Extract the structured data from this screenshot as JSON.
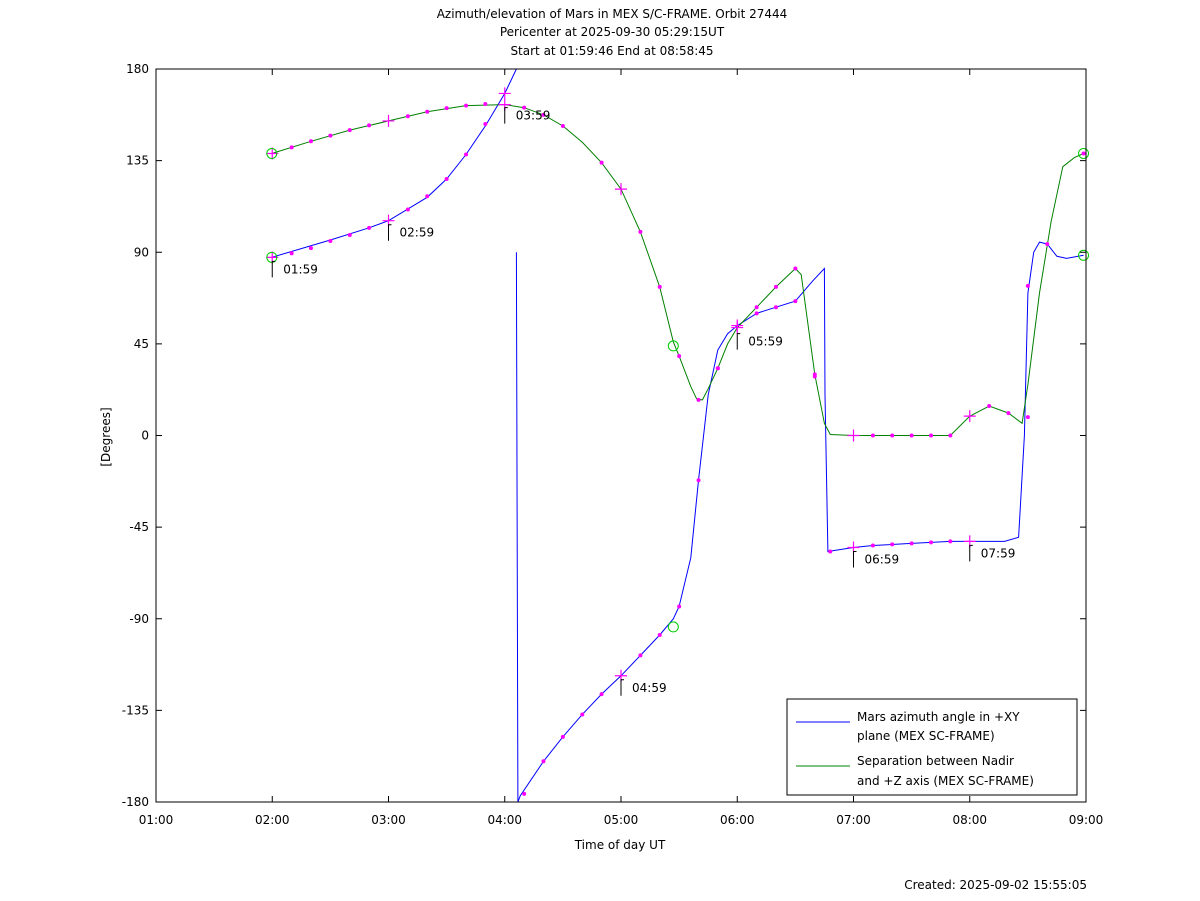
{
  "chart_data": {
    "type": "line",
    "title": "Azimuth/elevation of Mars in MEX S/C-FRAME.  Orbit 27444",
    "subtitle_1": "Pericenter at 2025-09-30 05:29:15UT",
    "subtitle_2": "Start at 01:59:46 End at 08:58:45",
    "xlabel": "Time of day UT",
    "ylabel": "[Degrees]",
    "xlim": [
      1.0,
      9.0
    ],
    "ylim": [
      -180,
      180
    ],
    "x_ticks": [
      {
        "v": 1,
        "label": "01:00"
      },
      {
        "v": 2,
        "label": "02:00"
      },
      {
        "v": 3,
        "label": "03:00"
      },
      {
        "v": 4,
        "label": "04:00"
      },
      {
        "v": 5,
        "label": "05:00"
      },
      {
        "v": 6,
        "label": "06:00"
      },
      {
        "v": 7,
        "label": "07:00"
      },
      {
        "v": 8,
        "label": "08:00"
      },
      {
        "v": 9,
        "label": "09:00"
      }
    ],
    "y_ticks": [
      {
        "v": 180,
        "label": "180"
      },
      {
        "v": 135,
        "label": "135"
      },
      {
        "v": 90,
        "label": "90"
      },
      {
        "v": 45,
        "label": "45"
      },
      {
        "v": 0,
        "label": "0"
      },
      {
        "v": -45,
        "label": "-45"
      },
      {
        "v": -90,
        "label": "-90"
      },
      {
        "v": -135,
        "label": "-135"
      },
      {
        "v": -180,
        "label": "-180"
      }
    ],
    "grid": false,
    "legend_position": "bottom-right",
    "series": [
      {
        "name_line1": "Mars azimuth angle in +XY",
        "name_line2": "plane (MEX SC-FRAME)",
        "color": "#0000ff",
        "points": [
          [
            1.996,
            87.5
          ],
          [
            2.5,
            96
          ],
          [
            2.833,
            102
          ],
          [
            3.0,
            105.5
          ],
          [
            3.333,
            117
          ],
          [
            3.5,
            126
          ],
          [
            3.667,
            138
          ],
          [
            3.833,
            152
          ],
          [
            4.0,
            168
          ],
          [
            4.1,
            180
          ],
          [
            4.1,
            null
          ],
          [
            4.1,
            90
          ],
          [
            4.113,
            -180
          ],
          [
            4.133,
            -177
          ],
          [
            4.333,
            -160
          ],
          [
            4.5,
            -148
          ],
          [
            4.667,
            -137
          ],
          [
            4.833,
            -127
          ],
          [
            5.0,
            -118
          ],
          [
            5.167,
            -108
          ],
          [
            5.333,
            -98
          ],
          [
            5.45,
            -90
          ],
          [
            5.5,
            -84
          ],
          [
            5.6,
            -60
          ],
          [
            5.667,
            -22
          ],
          [
            5.75,
            20
          ],
          [
            5.833,
            42
          ],
          [
            5.917,
            50
          ],
          [
            6.0,
            54
          ],
          [
            6.167,
            60
          ],
          [
            6.333,
            63
          ],
          [
            6.5,
            66
          ],
          [
            6.65,
            76
          ],
          [
            6.75,
            82
          ],
          [
            6.755,
            20
          ],
          [
            6.78,
            -57
          ],
          [
            6.833,
            -56.5
          ],
          [
            7.0,
            -55
          ],
          [
            7.167,
            -54
          ],
          [
            7.5,
            -53
          ],
          [
            7.833,
            -52
          ],
          [
            8.0,
            -52
          ],
          [
            8.3,
            -52
          ],
          [
            8.42,
            -50
          ],
          [
            8.47,
            0
          ],
          [
            8.5,
            70
          ],
          [
            8.55,
            90
          ],
          [
            8.6,
            95
          ],
          [
            8.667,
            94
          ],
          [
            8.75,
            88
          ],
          [
            8.833,
            87
          ],
          [
            8.979,
            88.5
          ]
        ]
      },
      {
        "name_line1": "Separation between Nadir",
        "name_line2": "and +Z axis (MEX SC-FRAME)",
        "color": "#008000",
        "points": [
          [
            1.996,
            138.5
          ],
          [
            2.333,
            144.5
          ],
          [
            2.667,
            150
          ],
          [
            3.0,
            154.5
          ],
          [
            3.333,
            159
          ],
          [
            3.667,
            162
          ],
          [
            4.0,
            162.5
          ],
          [
            4.167,
            161
          ],
          [
            4.333,
            157.5
          ],
          [
            4.5,
            152
          ],
          [
            4.667,
            144
          ],
          [
            4.833,
            134
          ],
          [
            5.0,
            121
          ],
          [
            5.167,
            100
          ],
          [
            5.333,
            73
          ],
          [
            5.45,
            46
          ],
          [
            5.5,
            39
          ],
          [
            5.6,
            24
          ],
          [
            5.65,
            18
          ],
          [
            5.7,
            17.5
          ],
          [
            5.75,
            23
          ],
          [
            5.833,
            33
          ],
          [
            5.917,
            45
          ],
          [
            6.0,
            53
          ],
          [
            6.167,
            63
          ],
          [
            6.333,
            73
          ],
          [
            6.5,
            82
          ],
          [
            6.55,
            79
          ],
          [
            6.667,
            30
          ],
          [
            6.75,
            6
          ],
          [
            6.8,
            0.5
          ],
          [
            7.0,
            0
          ],
          [
            7.5,
            0
          ],
          [
            7.833,
            0
          ],
          [
            8.0,
            9.5
          ],
          [
            8.167,
            14.5
          ],
          [
            8.333,
            11
          ],
          [
            8.45,
            6
          ],
          [
            8.5,
            25
          ],
          [
            8.6,
            70
          ],
          [
            8.7,
            105
          ],
          [
            8.8,
            132
          ],
          [
            8.9,
            136.5
          ],
          [
            8.979,
            138.5
          ]
        ]
      }
    ],
    "markers_dots": [
      [
        2.167,
        141.5
      ],
      [
        2.333,
        144.5
      ],
      [
        2.5,
        147.3
      ],
      [
        2.667,
        150
      ],
      [
        2.833,
        152.3
      ],
      [
        3.167,
        156.8
      ],
      [
        3.333,
        159
      ],
      [
        3.5,
        160.8
      ],
      [
        3.667,
        162
      ],
      [
        3.833,
        162.8
      ],
      [
        4.167,
        161
      ],
      [
        4.333,
        157.5
      ],
      [
        4.5,
        152
      ],
      [
        4.833,
        134
      ],
      [
        5.167,
        100
      ],
      [
        5.333,
        73
      ],
      [
        5.5,
        39
      ],
      [
        5.667,
        17.5
      ],
      [
        5.833,
        33
      ],
      [
        6.167,
        63
      ],
      [
        6.333,
        73
      ],
      [
        6.5,
        82
      ],
      [
        6.667,
        30
      ],
      [
        7.167,
        0
      ],
      [
        7.333,
        0
      ],
      [
        7.5,
        0
      ],
      [
        7.667,
        0
      ],
      [
        7.833,
        0
      ],
      [
        8.167,
        14.5
      ],
      [
        8.333,
        11
      ],
      [
        8.5,
        9
      ],
      [
        8.979,
        138.5
      ],
      [
        2.167,
        89.5
      ],
      [
        2.333,
        92
      ],
      [
        2.5,
        95.5
      ],
      [
        2.667,
        98.5
      ],
      [
        2.833,
        102
      ],
      [
        3.167,
        111
      ],
      [
        3.333,
        117.5
      ],
      [
        3.5,
        126
      ],
      [
        3.667,
        138
      ],
      [
        3.833,
        153
      ],
      [
        4.167,
        -176
      ],
      [
        4.333,
        -160
      ],
      [
        4.5,
        -148
      ],
      [
        4.667,
        -137
      ],
      [
        4.833,
        -127
      ],
      [
        5.167,
        -108
      ],
      [
        5.333,
        -98
      ],
      [
        5.5,
        -84
      ],
      [
        5.667,
        -22
      ],
      [
        5.833,
        33
      ],
      [
        6.167,
        60
      ],
      [
        6.333,
        63
      ],
      [
        6.5,
        66
      ],
      [
        6.667,
        29
      ],
      [
        6.8,
        -57
      ],
      [
        7.167,
        -54
      ],
      [
        7.333,
        -53.5
      ],
      [
        7.5,
        -53
      ],
      [
        7.667,
        -52.5
      ],
      [
        7.833,
        -52
      ],
      [
        8.5,
        73.5
      ],
      [
        8.667,
        94
      ]
    ],
    "markers_hour": [
      [
        2.0,
        138.5
      ],
      [
        3.0,
        154.5
      ],
      [
        4.0,
        162.5
      ],
      [
        5.0,
        121
      ],
      [
        6.0,
        53
      ],
      [
        7.0,
        0
      ],
      [
        8.0,
        9.5
      ],
      [
        2.0,
        87.5
      ],
      [
        3.0,
        105.5
      ],
      [
        4.0,
        168
      ],
      [
        5.0,
        -118
      ],
      [
        6.0,
        54
      ],
      [
        7.0,
        -55
      ],
      [
        8.0,
        -52
      ]
    ],
    "markers_circles": [
      [
        1.996,
        138.5
      ],
      [
        1.996,
        87.5
      ],
      [
        5.45,
        44
      ],
      [
        5.45,
        -94
      ],
      [
        8.979,
        138.5
      ],
      [
        8.979,
        88.5
      ]
    ],
    "annotations": [
      {
        "x": 2.0,
        "y": 87.5,
        "label": "01:59"
      },
      {
        "x": 3.0,
        "y": 105.5,
        "label": "02:59"
      },
      {
        "x": 4.0,
        "y": 163,
        "label": "03:59"
      },
      {
        "x": 5.0,
        "y": -118,
        "label": "04:59"
      },
      {
        "x": 6.0,
        "y": 52,
        "label": "05:59"
      },
      {
        "x": 7.0,
        "y": -55,
        "label": "06:59"
      },
      {
        "x": 8.0,
        "y": -52,
        "label": "07:59"
      }
    ]
  },
  "footer": {
    "created": "Created: 2025-09-02 15:55:05"
  }
}
